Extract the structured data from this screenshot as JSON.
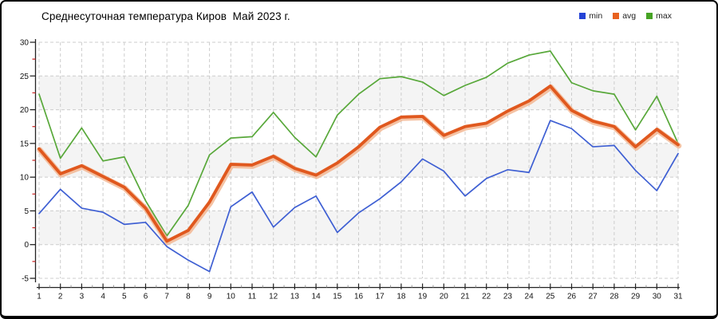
{
  "title": "Среднесуточная температура Киров  Май 2023 г.",
  "legend": {
    "items": [
      {
        "label": "min",
        "color": "#2443d6"
      },
      {
        "label": "avg",
        "color": "#e8611f"
      },
      {
        "label": "max",
        "color": "#46a324"
      }
    ]
  },
  "chart_data": {
    "type": "line",
    "title": "Среднесуточная температура Киров  Май 2023 г.",
    "xlabel": "",
    "ylabel": "",
    "x": [
      1,
      2,
      3,
      4,
      5,
      6,
      7,
      8,
      9,
      10,
      11,
      12,
      13,
      14,
      15,
      16,
      17,
      18,
      19,
      20,
      21,
      22,
      23,
      24,
      25,
      26,
      27,
      28,
      29,
      30,
      31
    ],
    "series": [
      {
        "name": "min",
        "color": "#3e5fd3",
        "width": 1.7,
        "values": [
          4.6,
          8.2,
          5.4,
          4.8,
          3.0,
          3.3,
          -0.3,
          -2.3,
          -4.0,
          5.6,
          7.8,
          2.6,
          5.5,
          7.2,
          1.8,
          4.7,
          6.8,
          9.3,
          12.7,
          10.9,
          7.2,
          9.8,
          11.1,
          10.7,
          18.4,
          17.2,
          14.5,
          14.7,
          11.0,
          8.0,
          13.5
        ]
      },
      {
        "name": "avg",
        "color": "#e0581e",
        "halo": "#f2b38c",
        "width": 3.8,
        "values": [
          14.2,
          10.5,
          11.7,
          10.1,
          8.5,
          5.4,
          0.5,
          2.1,
          6.3,
          11.9,
          11.8,
          13.1,
          11.3,
          10.3,
          12.1,
          14.5,
          17.4,
          18.9,
          19.0,
          16.2,
          17.5,
          18.0,
          19.8,
          21.3,
          23.5,
          19.9,
          18.3,
          17.5,
          14.5,
          17.1,
          14.8
        ]
      },
      {
        "name": "max",
        "color": "#58a83a",
        "width": 1.7,
        "values": [
          22.3,
          12.8,
          17.3,
          12.4,
          13.0,
          6.5,
          1.3,
          5.8,
          13.3,
          15.8,
          16.0,
          19.6,
          15.9,
          13.0,
          19.2,
          22.3,
          24.6,
          24.9,
          24.1,
          22.1,
          23.6,
          24.8,
          26.9,
          28.1,
          28.7,
          24.0,
          22.8,
          22.3,
          17.0,
          22.0,
          15.0
        ]
      }
    ],
    "ylim": [
      -5,
      30
    ],
    "yticks": [
      30,
      25,
      20,
      15,
      10,
      5,
      0,
      -5
    ],
    "ytick_step": 5,
    "y_minor_step": 2.5,
    "grid": "dashed",
    "grid_color": "#cccccc",
    "band_color": "#f4f4f4",
    "bands": [
      [
        20,
        25
      ],
      [
        10,
        15
      ],
      [
        0,
        5
      ]
    ],
    "axis_color": "#222222",
    "minor_tick_color": "#cc2222",
    "legend_position": "top-right"
  }
}
